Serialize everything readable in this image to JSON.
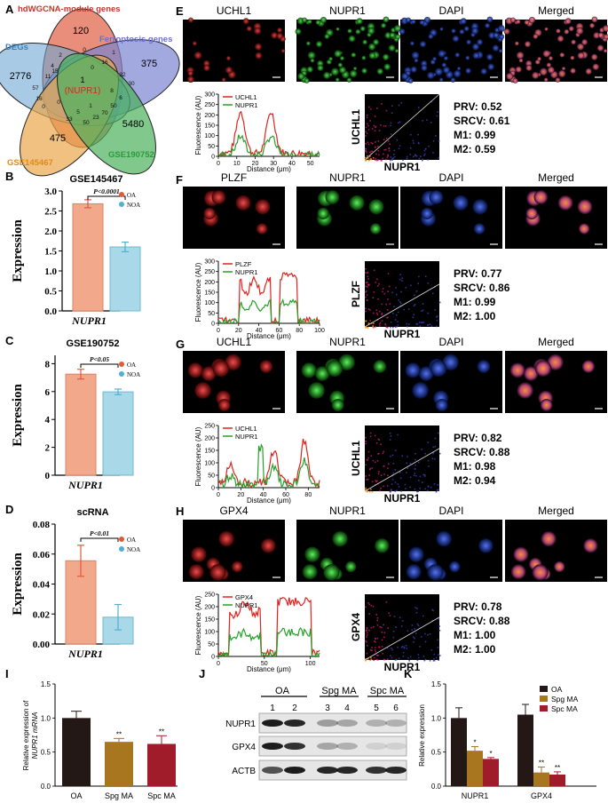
{
  "panel_letters": [
    "A",
    "B",
    "C",
    "D",
    "E",
    "F",
    "G",
    "H",
    "I",
    "J",
    "K"
  ],
  "venn": {
    "sets": [
      {
        "name": "hdWGCNA-module genes",
        "color": "#c0392b",
        "fill": "#e0684f"
      },
      {
        "name": "Ferroptosis genes",
        "color": "#6a6fc9",
        "fill": "#7b84d0"
      },
      {
        "name": "DEGs",
        "color": "#3a7fbf",
        "fill": "#6ea7d4"
      },
      {
        "name": "GSE145467",
        "color": "#e08a1e",
        "fill": "#eaa64c"
      },
      {
        "name": "GSE190752",
        "color": "#2a9a3c",
        "fill": "#4cb05c"
      }
    ],
    "counts": {
      "wgcna_only": "120",
      "ferro_only": "375",
      "degs_only": "2776",
      "gse145_only": "475",
      "gse190_only": "5480"
    },
    "small_counts": [
      "0",
      "2",
      "1",
      "16",
      "32",
      "30",
      "57",
      "4",
      "0",
      "11",
      "15",
      "16",
      "5",
      "0",
      "0",
      "8",
      "6",
      "50",
      "23",
      "33",
      "50",
      "70",
      "1"
    ],
    "center_count": "1",
    "center_gene": "(NUPR1)"
  },
  "chart_data": [
    {
      "id": "B",
      "type": "bar",
      "title": "GSE145467",
      "categories": [
        "OA",
        "NOA"
      ],
      "values": [
        2.68,
        1.6
      ],
      "errors": [
        0.1,
        0.12
      ],
      "ylim": [
        0,
        3.0
      ],
      "yticks": [
        "0.0",
        "0.5",
        "1.0",
        "1.5",
        "2.0",
        "2.5",
        "3.0"
      ],
      "ylabel": "Expression",
      "xlabel": "NUPR1",
      "pvalue": "P<0.0001",
      "legend": [
        "OA",
        "NOA"
      ],
      "colors": [
        "#f2a88a",
        "#a9d8e8"
      ]
    },
    {
      "id": "C",
      "type": "bar",
      "title": "GSE190752",
      "categories": [
        "OA",
        "NOA"
      ],
      "values": [
        7.25,
        5.98
      ],
      "errors": [
        0.35,
        0.2
      ],
      "ylim": [
        0,
        8.6
      ],
      "yticks": [
        "0",
        "2",
        "4",
        "6",
        "8"
      ],
      "ylabel": "Expression",
      "xlabel": "NUPR1",
      "pvalue": "P<0.05",
      "legend": [
        "OA",
        "NOA"
      ],
      "colors": [
        "#f2a88a",
        "#a9d8e8"
      ]
    },
    {
      "id": "D",
      "type": "bar",
      "title": "scRNA",
      "categories": [
        "OA",
        "NOA"
      ],
      "values": [
        0.059,
        0.019
      ],
      "errors": [
        0.011,
        0.009
      ],
      "ylim": [
        0,
        0.085
      ],
      "yticks": [
        "0.00",
        "0.02",
        "0.04",
        "0.06",
        "0.08"
      ],
      "ylabel": "Expression",
      "xlabel": "NUPR1",
      "pvalue": "P<0.01",
      "legend": [
        "OA",
        "NOA"
      ],
      "colors": [
        "#f2a88a",
        "#a9d8e8"
      ]
    },
    {
      "id": "I",
      "type": "bar",
      "categories": [
        "OA",
        "Spg MA",
        "Spc MA"
      ],
      "values": [
        1.0,
        0.65,
        0.62
      ],
      "errors": [
        0.1,
        0.05,
        0.12
      ],
      "ylim": [
        0,
        1.5
      ],
      "yticks": [
        "0.0",
        "0.5",
        "1.0",
        "1.5"
      ],
      "ylabel_line1": "Relative expression of",
      "ylabel_line2": "NUPR1 mRNA",
      "marks": [
        "",
        "**",
        "**"
      ],
      "colors": [
        "#231815",
        "#a8761e",
        "#a01c2a"
      ]
    },
    {
      "id": "K",
      "type": "bar",
      "groups": [
        "NUPR1",
        "GPX4"
      ],
      "series": [
        {
          "name": "OA",
          "values": [
            1.0,
            1.05
          ],
          "errors": [
            0.15,
            0.15
          ]
        },
        {
          "name": "Spg MA",
          "values": [
            0.52,
            0.2
          ],
          "errors": [
            0.06,
            0.08
          ]
        },
        {
          "name": "Spc MA",
          "values": [
            0.4,
            0.17
          ],
          "errors": [
            0.02,
            0.04
          ]
        }
      ],
      "marks": [
        [
          "",
          "*",
          "*"
        ],
        [
          "",
          "**",
          "**"
        ]
      ],
      "ylim": [
        0,
        1.5
      ],
      "yticks": [
        "0.0",
        "0.5",
        "1.0",
        "1.5"
      ],
      "ylabel": "Relative expression",
      "colors": [
        "#231815",
        "#a8761e",
        "#a01c2a"
      ]
    }
  ],
  "microscopy": [
    {
      "id": "E",
      "channels": [
        "UCHL1",
        "NUPR1",
        "DAPI",
        "Merged"
      ],
      "fluor_x": [
        0,
        10,
        20,
        30,
        40,
        50
      ],
      "fluor_y": [
        0,
        50,
        100,
        150,
        200,
        250,
        300
      ],
      "fluor_ymax": 300,
      "fluor_xmax": 55,
      "legend": [
        "UCHL1",
        "NUPR1"
      ],
      "scatter_y": "UCHL1",
      "scatter_x": "NUPR1",
      "prv": "PRV: 0.52",
      "srcv": "SRCV: 0.61",
      "m1": "M1: 0.99",
      "m2": "M2: 0.59"
    },
    {
      "id": "F",
      "channels": [
        "PLZF",
        "NUPR1",
        "DAPI",
        "Merged"
      ],
      "fluor_x": [
        0,
        20,
        40,
        60,
        80,
        100
      ],
      "fluor_y": [
        0,
        50,
        100,
        150,
        200,
        250,
        300
      ],
      "fluor_ymax": 300,
      "fluor_xmax": 100,
      "legend": [
        "PLZF",
        "NUPR1"
      ],
      "scatter_y": "PLZF",
      "scatter_x": "NUPR1",
      "prv": "PRV: 0.77",
      "srcv": "SRCV: 0.86",
      "m1": "M1: 0.99",
      "m2": "M2: 1.00"
    },
    {
      "id": "G",
      "channels": [
        "UCHL1",
        "NUPR1",
        "DAPI",
        "Merged"
      ],
      "fluor_x": [
        0,
        20,
        40,
        60,
        80
      ],
      "fluor_y": [
        0,
        50,
        100,
        150,
        200,
        250
      ],
      "fluor_ymax": 250,
      "fluor_xmax": 90,
      "legend": [
        "UCHL1",
        "NUPR1"
      ],
      "scatter_y": "UCHL1",
      "scatter_x": "NUPR1",
      "prv": "PRV: 0.82",
      "srcv": "SRCV: 0.88",
      "m1": "M1: 0.98",
      "m2": "M2: 0.94"
    },
    {
      "id": "H",
      "channels": [
        "GPX4",
        "NUPR1",
        "DAPI",
        "Merged"
      ],
      "fluor_x": [
        0,
        50,
        100
      ],
      "fluor_y": [
        0,
        50,
        100,
        150,
        200,
        250
      ],
      "fluor_ymax": 250,
      "fluor_xmax": 110,
      "legend": [
        "GPX4",
        "NUPR1"
      ],
      "scatter_y": "GPX4",
      "scatter_x": "NUPR1",
      "prv": "PRV: 0.78",
      "srcv": "SRCV: 0.88",
      "m1": "M1: 1.00",
      "m2": "M2: 1.00"
    }
  ],
  "fluor_axis": {
    "ylabel": "Fluorescence (AU)",
    "xlabel": "Distance (μm)"
  },
  "western": {
    "groups": [
      "OA",
      "Spg MA",
      "Spc MA"
    ],
    "lanes": [
      "1",
      "2",
      "3",
      "4",
      "5",
      "6"
    ],
    "proteins": [
      "NUPR1",
      "GPX4",
      "ACTB"
    ]
  },
  "colors": {
    "red": "#e0231f",
    "green": "#27a02b"
  }
}
